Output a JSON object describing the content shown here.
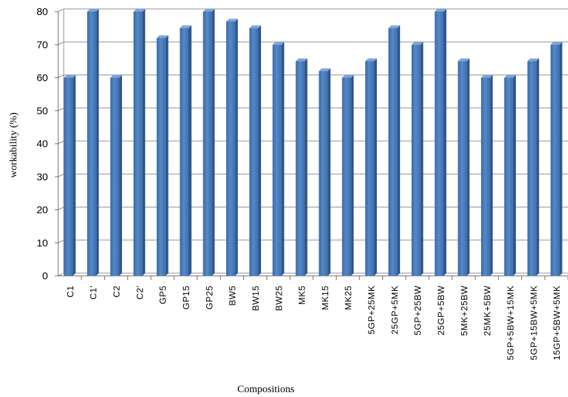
{
  "chart_data": {
    "type": "bar",
    "title": "",
    "xlabel": "Compositions",
    "ylabel": "workability  (%)",
    "ylim": [
      0,
      80
    ],
    "yticks": [
      0,
      10,
      20,
      30,
      40,
      50,
      60,
      70,
      80
    ],
    "grid": true,
    "legend": "none",
    "bar_color": "#4f81bd",
    "categories": [
      "C1",
      "C1'",
      "C2",
      "C2'",
      "GP5",
      "GP15",
      "GP25",
      "BW5",
      "BW15",
      "BW25",
      "MK5",
      "MK15",
      "MK25",
      "5GP+25MK",
      "25GP+5MK",
      "5GP+25BW",
      "25GP+5BW",
      "5MK+25BW",
      "25MK+5BW",
      "5GP+5BW+15MK",
      "5GP+15BW+5MK",
      "15GP+5BW+5MK"
    ],
    "values": [
      60,
      80,
      60,
      80,
      72,
      75,
      80,
      77,
      75,
      70,
      65,
      62,
      60,
      65,
      75,
      70,
      80,
      65,
      60,
      60,
      65,
      70
    ]
  }
}
